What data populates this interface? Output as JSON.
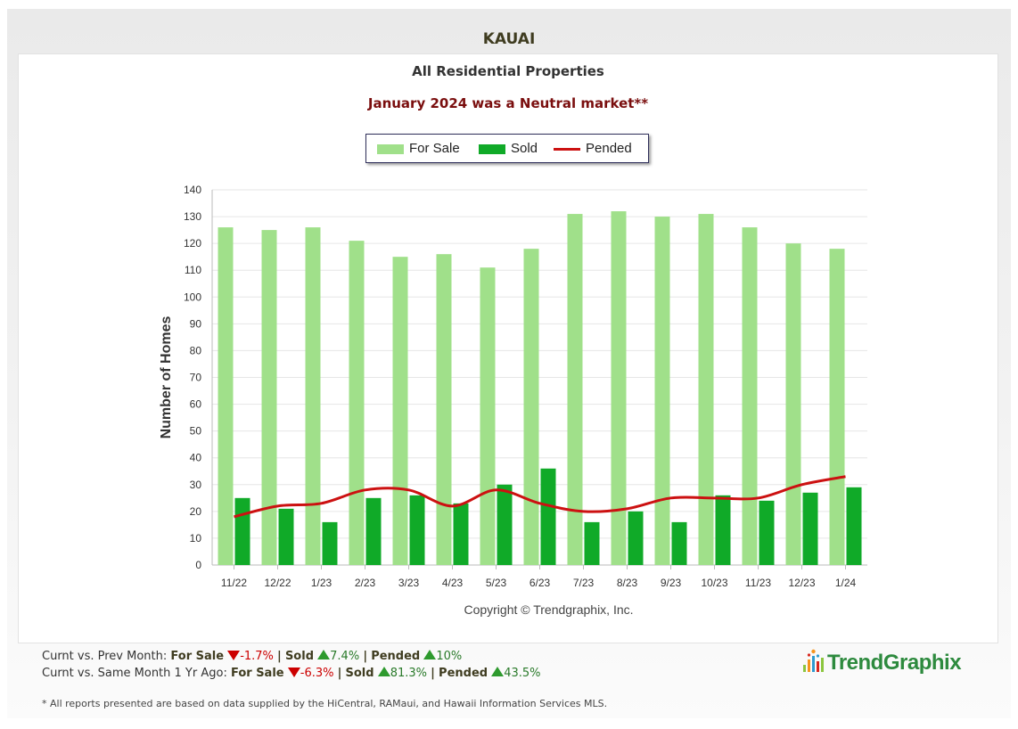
{
  "header": {
    "region": "KAUAI",
    "subtitle": "All Residential Properties",
    "market_note": "January 2024 was a Neutral market**"
  },
  "colors": {
    "for_sale": "#a0e08a",
    "sold": "#10aa28",
    "pended": "#cc1111",
    "market_note": "#7a0e0e",
    "region": "#3f3c20"
  },
  "legend": {
    "for_sale": "For Sale",
    "sold": "Sold",
    "pended": "Pended"
  },
  "chart_data": {
    "type": "bar",
    "title": "",
    "ylabel": "Number of Homes",
    "xlabel": "",
    "ylim": [
      0,
      140
    ],
    "ytick_step": 10,
    "categories": [
      "11/22",
      "12/22",
      "1/23",
      "2/23",
      "3/23",
      "4/23",
      "5/23",
      "6/23",
      "7/23",
      "8/23",
      "9/23",
      "10/23",
      "11/23",
      "12/23",
      "1/24"
    ],
    "series": [
      {
        "name": "For Sale",
        "kind": "bar",
        "values": [
          126,
          125,
          126,
          121,
          115,
          116,
          111,
          118,
          131,
          132,
          130,
          131,
          126,
          120,
          118
        ]
      },
      {
        "name": "Sold",
        "kind": "bar",
        "values": [
          25,
          21,
          16,
          25,
          26,
          23,
          30,
          36,
          16,
          20,
          16,
          26,
          24,
          27,
          29
        ]
      },
      {
        "name": "Pended",
        "kind": "line",
        "values": [
          18,
          22,
          23,
          28,
          28,
          22,
          28,
          23,
          20,
          21,
          25,
          25,
          25,
          30,
          33
        ]
      }
    ],
    "copyright": "Copyright © Trendgraphix, Inc."
  },
  "stats": {
    "prev_month": {
      "label": "Curnt vs. Prev Month:",
      "for_sale_label": "For Sale",
      "for_sale_change": "-1.7%",
      "sold_label": "Sold",
      "sold_change": "7.4%",
      "pended_label": "Pended",
      "pended_change": "10%"
    },
    "year_ago": {
      "label": "Curnt vs. Same Month 1 Yr Ago:",
      "for_sale_label": "For Sale",
      "for_sale_change": "-6.3%",
      "sold_label": "Sold",
      "sold_change": "81.3%",
      "pended_label": "Pended",
      "pended_change": "43.5%"
    },
    "separator": "|"
  },
  "footnote": "* All reports presented are based on data supplied by the HiCentral, RAMaui, and Hawaii Information Services MLS.",
  "brand": {
    "logo_text": "TrendGraphix"
  }
}
